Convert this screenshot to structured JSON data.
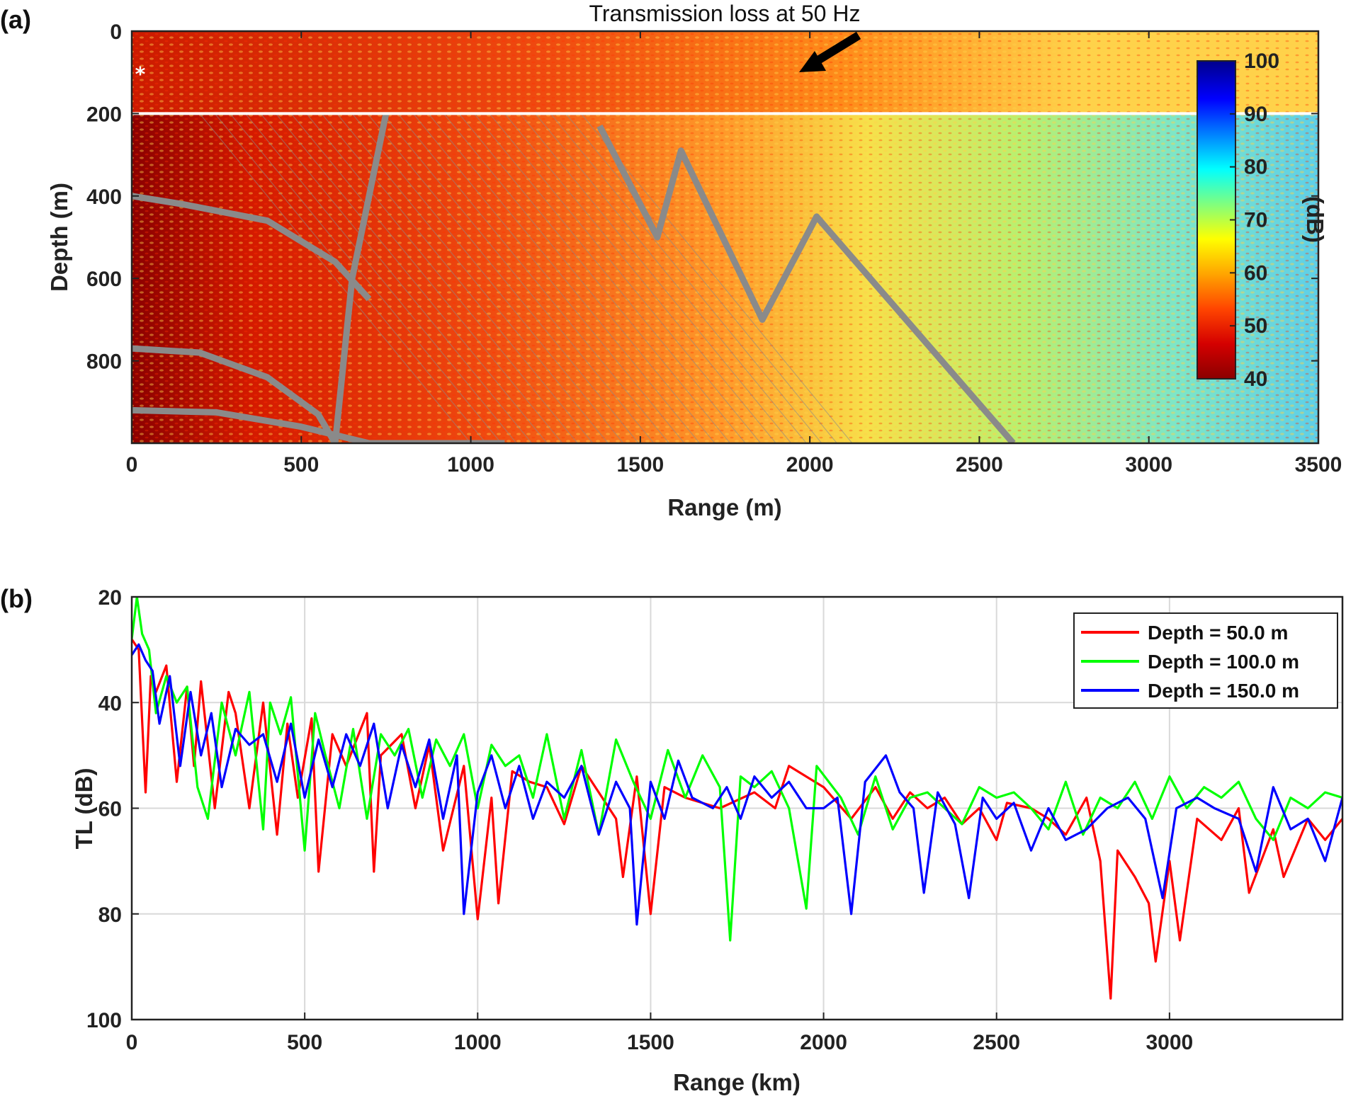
{
  "chart_data": [
    {
      "type": "heatmap",
      "panel_label": "(a)",
      "annotation": "Transmission loss at 50 Hz",
      "xlabel": "Range (m)",
      "ylabel": "Depth (m)",
      "xlim": [
        0,
        3500
      ],
      "ylim": [
        1000,
        0
      ],
      "xticks": [
        "0",
        "500",
        "1000",
        "1500",
        "2000",
        "2500",
        "3000",
        "3500"
      ],
      "yticks": [
        "0",
        "200",
        "400",
        "600",
        "800"
      ],
      "colorbar": {
        "label": "(dB)",
        "range": [
          40,
          100
        ],
        "ticks": [
          "40",
          "50",
          "60",
          "70",
          "80",
          "90",
          "100"
        ],
        "colormap": [
          "#8b0000",
          "#d40000",
          "#ff4500",
          "#ffa500",
          "#ffff00",
          "#7fff7f",
          "#00ffff",
          "#0080ff",
          "#0000ff",
          "#00008b"
        ]
      },
      "interface_depth_m": 200,
      "source_depth_m": 100,
      "tl_trend_db": {
        "range_m": [
          0,
          500,
          1000,
          1500,
          2000,
          2500,
          3000,
          3500
        ],
        "upper_layer": [
          46,
          48,
          51,
          53,
          55,
          58,
          60,
          62
        ],
        "lower_layer": [
          44,
          49,
          53,
          56,
          60,
          64,
          68,
          70
        ]
      },
      "bright_ray_paths": [
        {
          "range_m": [
            0,
            150,
            400,
            600,
            700
          ],
          "depth_m": [
            400,
            420,
            460,
            560,
            650
          ]
        },
        {
          "range_m": [
            0,
            250,
            500,
            700,
            900,
            1100
          ],
          "depth_m": [
            920,
            925,
            960,
            1000,
            1000,
            1000
          ]
        },
        {
          "range_m": [
            0,
            200,
            400,
            550,
            600,
            650,
            750
          ],
          "depth_m": [
            770,
            780,
            840,
            930,
            1000,
            600,
            200
          ]
        },
        {
          "range_m": [
            1380,
            1550,
            1620,
            1860,
            2020,
            2600
          ],
          "depth_m": [
            230,
            500,
            290,
            700,
            450,
            1000
          ]
        }
      ]
    },
    {
      "type": "line",
      "panel_label": "(b)",
      "xlabel": "Range (km)",
      "ylabel": "TL (dB)",
      "xlim": [
        0,
        3500
      ],
      "ylim": [
        100,
        20
      ],
      "xticks": [
        "0",
        "500",
        "1000",
        "1500",
        "2000",
        "2500",
        "3000"
      ],
      "yticks": [
        "20",
        "40",
        "60",
        "80",
        "100"
      ],
      "grid": true,
      "legend_position": "top-right",
      "series": [
        {
          "name": "Depth = 50.0 m",
          "color": "#ff0000",
          "x": [
            0,
            20,
            40,
            55,
            70,
            100,
            130,
            160,
            180,
            200,
            240,
            280,
            300,
            340,
            380,
            420,
            450,
            480,
            520,
            540,
            580,
            620,
            680,
            700,
            720,
            780,
            820,
            860,
            900,
            960,
            1000,
            1040,
            1060,
            1100,
            1150,
            1200,
            1250,
            1300,
            1400,
            1420,
            1460,
            1500,
            1540,
            1600,
            1700,
            1800,
            1860,
            1900,
            2000,
            2080,
            2150,
            2200,
            2250,
            2300,
            2350,
            2400,
            2450,
            2500,
            2530,
            2600,
            2650,
            2700,
            2760,
            2800,
            2830,
            2850,
            2900,
            2940,
            2960,
            3000,
            3030,
            3080,
            3150,
            3200,
            3230,
            3300,
            3330,
            3400,
            3450,
            3500
          ],
          "y": [
            28,
            30,
            57,
            35,
            38,
            33,
            55,
            37,
            52,
            36,
            60,
            38,
            42,
            60,
            40,
            65,
            44,
            58,
            43,
            72,
            46,
            52,
            42,
            72,
            50,
            46,
            60,
            48,
            68,
            52,
            81,
            58,
            78,
            53,
            55,
            56,
            63,
            52,
            62,
            73,
            54,
            80,
            56,
            58,
            60,
            57,
            60,
            52,
            56,
            62,
            56,
            62,
            57,
            60,
            58,
            63,
            60,
            66,
            59,
            60,
            62,
            65,
            58,
            70,
            96,
            68,
            73,
            78,
            89,
            70,
            85,
            62,
            66,
            60,
            76,
            64,
            73,
            62,
            66,
            62
          ]
        },
        {
          "name": "Depth = 100.0 m",
          "color": "#00ff00",
          "x": [
            0,
            15,
            30,
            50,
            70,
            100,
            130,
            160,
            190,
            220,
            260,
            300,
            340,
            380,
            400,
            430,
            460,
            500,
            530,
            560,
            600,
            640,
            680,
            720,
            760,
            800,
            840,
            880,
            920,
            960,
            1000,
            1040,
            1080,
            1120,
            1160,
            1200,
            1250,
            1300,
            1350,
            1400,
            1450,
            1500,
            1550,
            1600,
            1650,
            1700,
            1730,
            1760,
            1800,
            1850,
            1900,
            1950,
            1980,
            2050,
            2100,
            2150,
            2200,
            2250,
            2300,
            2350,
            2400,
            2450,
            2500,
            2550,
            2600,
            2650,
            2700,
            2750,
            2800,
            2850,
            2900,
            2950,
            3000,
            3050,
            3100,
            3150,
            3200,
            3250,
            3300,
            3350,
            3400,
            3450,
            3500
          ],
          "y": [
            28,
            20,
            27,
            30,
            42,
            35,
            40,
            37,
            56,
            62,
            40,
            50,
            38,
            64,
            40,
            46,
            39,
            68,
            42,
            50,
            60,
            45,
            62,
            46,
            50,
            45,
            58,
            47,
            52,
            46,
            60,
            48,
            52,
            50,
            58,
            46,
            62,
            49,
            65,
            47,
            55,
            62,
            49,
            58,
            50,
            56,
            85,
            54,
            56,
            53,
            60,
            79,
            52,
            58,
            65,
            54,
            64,
            58,
            57,
            60,
            63,
            56,
            58,
            57,
            60,
            64,
            55,
            65,
            58,
            60,
            55,
            62,
            54,
            60,
            56,
            58,
            55,
            62,
            66,
            58,
            60,
            57,
            58
          ]
        },
        {
          "name": "Depth = 150.0 m",
          "color": "#0000ff",
          "x": [
            0,
            20,
            40,
            60,
            80,
            110,
            140,
            170,
            200,
            230,
            260,
            300,
            340,
            380,
            420,
            460,
            500,
            540,
            580,
            620,
            660,
            700,
            740,
            780,
            820,
            860,
            900,
            940,
            960,
            1000,
            1040,
            1080,
            1120,
            1160,
            1200,
            1250,
            1300,
            1350,
            1400,
            1440,
            1460,
            1500,
            1540,
            1580,
            1620,
            1680,
            1720,
            1760,
            1800,
            1850,
            1900,
            1950,
            2000,
            2040,
            2080,
            2120,
            2180,
            2220,
            2260,
            2290,
            2330,
            2380,
            2420,
            2460,
            2500,
            2550,
            2600,
            2650,
            2700,
            2760,
            2820,
            2880,
            2930,
            2980,
            3020,
            3080,
            3130,
            3200,
            3250,
            3300,
            3350,
            3400,
            3450,
            3500
          ],
          "y": [
            31,
            29,
            32,
            34,
            44,
            35,
            52,
            38,
            50,
            42,
            56,
            45,
            48,
            46,
            55,
            44,
            58,
            47,
            56,
            46,
            52,
            44,
            60,
            48,
            56,
            47,
            62,
            50,
            80,
            57,
            50,
            60,
            52,
            62,
            55,
            58,
            52,
            65,
            55,
            60,
            82,
            55,
            62,
            51,
            58,
            60,
            56,
            62,
            54,
            58,
            55,
            60,
            60,
            58,
            80,
            55,
            50,
            57,
            60,
            76,
            57,
            63,
            77,
            58,
            62,
            59,
            68,
            60,
            66,
            64,
            60,
            58,
            62,
            77,
            60,
            58,
            60,
            62,
            72,
            56,
            64,
            62,
            70,
            58
          ]
        }
      ]
    }
  ]
}
